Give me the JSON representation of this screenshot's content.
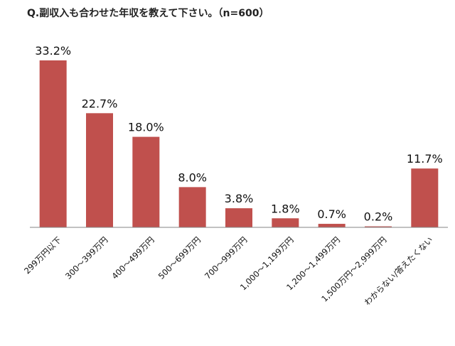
{
  "chart_data": {
    "type": "bar",
    "title": "Q.副収入も合わせた年収を教えて下さい。（n=600）",
    "categories": [
      "299万円以下",
      "300～399万円",
      "400～499万円",
      "500～699万円",
      "700～999万円",
      "1,000～1,199万円",
      "1,200～1,499万円",
      "1,500万円～2,999万円",
      "わからない/答えたくない"
    ],
    "values": [
      33.2,
      22.7,
      18.0,
      8.0,
      3.8,
      1.8,
      0.7,
      0.2,
      11.7
    ],
    "value_labels": [
      "33.2%",
      "22.7%",
      "18.0%",
      "8.0%",
      "3.8%",
      "1.8%",
      "0.7%",
      "0.2%",
      "11.7%"
    ],
    "ylim": [
      0,
      33.2
    ],
    "grid": false,
    "bar_color": "#c0504d",
    "axis_color": "#868686"
  }
}
